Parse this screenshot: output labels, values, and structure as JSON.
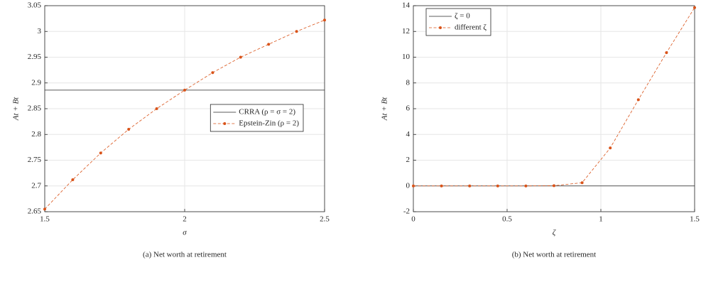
{
  "chart_data": [
    {
      "type": "line",
      "xlabel": "σ",
      "ylabel": "At + Bt",
      "caption": "(a) Net worth at retirement",
      "xlim": [
        1.5,
        2.5
      ],
      "xticks": [
        1.5,
        2,
        2.5
      ],
      "ylim": [
        2.65,
        3.05
      ],
      "yticks": [
        2.65,
        2.7,
        2.75,
        2.8,
        2.85,
        2.9,
        2.95,
        3,
        3.05
      ],
      "grid": true,
      "legend": "east",
      "series": [
        {
          "name": "CRRA (ρ = σ = 2)",
          "color": "#262626",
          "linestyle": "solid",
          "marker": "none",
          "x": [
            1.5,
            2.5
          ],
          "values": [
            2.886,
            2.886
          ]
        },
        {
          "name": "Epstein-Zin (ρ = 2)",
          "color": "#d95319",
          "linestyle": "dashed",
          "marker": "o",
          "x": [
            1.5,
            1.6,
            1.7,
            1.8,
            1.9,
            2.0,
            2.1,
            2.2,
            2.3,
            2.4,
            2.5
          ],
          "values": [
            2.655,
            2.712,
            2.764,
            2.81,
            2.85,
            2.886,
            2.92,
            2.95,
            2.975,
            3.0,
            3.022
          ]
        }
      ]
    },
    {
      "type": "line",
      "xlabel": "ζ",
      "ylabel": "At + Bt",
      "caption": "(b) Net worth at retirement",
      "xlim": [
        0,
        1.5
      ],
      "xticks": [
        0,
        0.5,
        1,
        1.5
      ],
      "ylim": [
        -2,
        14
      ],
      "yticks": [
        -2,
        0,
        2,
        4,
        6,
        8,
        10,
        12,
        14
      ],
      "grid": true,
      "legend": "northwest",
      "series": [
        {
          "name": "ζ = 0",
          "color": "#262626",
          "linestyle": "solid",
          "marker": "none",
          "x": [
            0,
            1.5
          ],
          "values": [
            0,
            0
          ]
        },
        {
          "name": "different ζ",
          "color": "#d95319",
          "linestyle": "dashed",
          "marker": "o",
          "x": [
            0,
            0.15,
            0.3,
            0.45,
            0.6,
            0.75,
            0.9,
            1.05,
            1.2,
            1.35,
            1.5
          ],
          "values": [
            0,
            0,
            0,
            0,
            0,
            0.02,
            0.25,
            2.95,
            6.7,
            10.35,
            13.85
          ]
        }
      ]
    }
  ]
}
